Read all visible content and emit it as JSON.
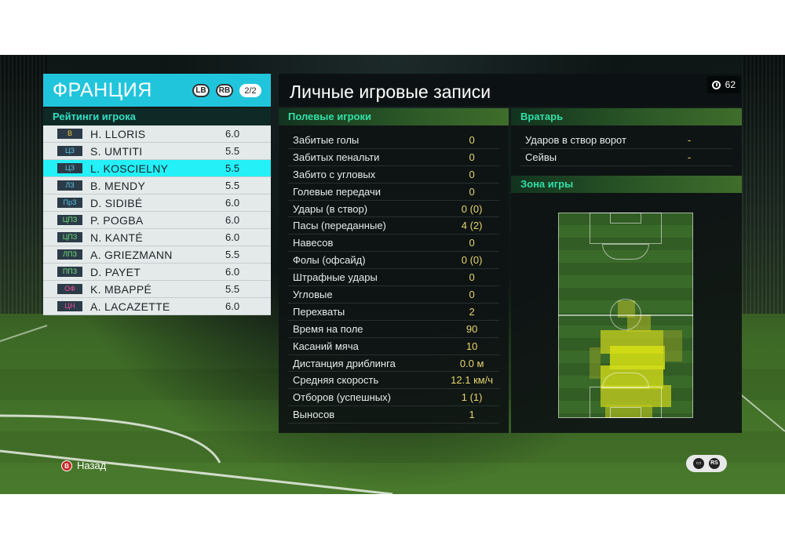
{
  "team": {
    "name": "ФРАНЦИЯ",
    "lb_label": "LB",
    "rb_label": "RB",
    "page": "2/2"
  },
  "ratings_title": "Рейтинги игрока",
  "players": [
    {
      "pos": "В",
      "pos_color": "#e9c23a",
      "name": "H. LLORIS",
      "rating": "6.0"
    },
    {
      "pos": "ЦЗ",
      "pos_color": "#56c6e6",
      "name": "S. UMTITI",
      "rating": "5.5"
    },
    {
      "pos": "ЦЗ",
      "pos_color": "#56c6e6",
      "name": "L. KOSCIELNY",
      "rating": "5.5",
      "selected": true
    },
    {
      "pos": "ЛЗ",
      "pos_color": "#56c6e6",
      "name": "B. MENDY",
      "rating": "5.5"
    },
    {
      "pos": "ПрЗ",
      "pos_color": "#56c6e6",
      "name": "D. SIDIBÉ",
      "rating": "6.0"
    },
    {
      "pos": "ЦПЗ",
      "pos_color": "#6fe07a",
      "name": "P. POGBA",
      "rating": "6.0"
    },
    {
      "pos": "ЦПЗ",
      "pos_color": "#6fe07a",
      "name": "N. KANTÉ",
      "rating": "6.0"
    },
    {
      "pos": "ЛПЗ",
      "pos_color": "#6fe07a",
      "name": "A. GRIEZMANN",
      "rating": "5.5"
    },
    {
      "pos": "ППЗ",
      "pos_color": "#6fe07a",
      "name": "D. PAYET",
      "rating": "6.0"
    },
    {
      "pos": "ОФ",
      "pos_color": "#f0509a",
      "name": "K. MBAPPÉ",
      "rating": "5.5"
    },
    {
      "pos": "ЦН",
      "pos_color": "#f0509a",
      "name": "A. LACAZETTE",
      "rating": "6.0"
    }
  ],
  "main_title": "Личные игровые записи",
  "timer": "62",
  "field_players_title": "Полевые игроки",
  "stats": [
    {
      "label": "Забитые голы",
      "value": "0"
    },
    {
      "label": "Забитых пенальти",
      "value": "0"
    },
    {
      "label": "Забито с угловых",
      "value": "0"
    },
    {
      "label": "Голевые передачи",
      "value": "0"
    },
    {
      "label": "Удары (в створ)",
      "value": "0 (0)"
    },
    {
      "label": "Пасы (переданные)",
      "value": "4 (2)"
    },
    {
      "label": "Навесов",
      "value": "0"
    },
    {
      "label": "Фолы (офсайд)",
      "value": "0 (0)"
    },
    {
      "label": "Штрафные удары",
      "value": "0"
    },
    {
      "label": "Угловые",
      "value": "0"
    },
    {
      "label": "Перехваты",
      "value": "2"
    },
    {
      "label": "Время на поле",
      "value": "90"
    },
    {
      "label": "Касаний мяча",
      "value": "10"
    },
    {
      "label": "Дистанция дриблинга",
      "value": "0.0 м"
    },
    {
      "label": "Средняя скорость",
      "value": "12.1 км/ч"
    },
    {
      "label": "Отборов (успешных)",
      "value": "1 (1)"
    },
    {
      "label": "Выносов",
      "value": "1"
    }
  ],
  "goalkeeper_title": "Вратарь",
  "gk_stats": [
    {
      "label": "Ударов в створ ворот",
      "value": "-"
    },
    {
      "label": "Сейвы",
      "value": "-"
    }
  ],
  "zone_title": "Зона игры",
  "back_label": "Назад",
  "b_button": "B",
  "colors": {
    "accent_cyan": "#20c5dc",
    "selected_row": "#23f0f7",
    "stat_value": "#e7d56b",
    "section_title": "#31e0a8"
  }
}
